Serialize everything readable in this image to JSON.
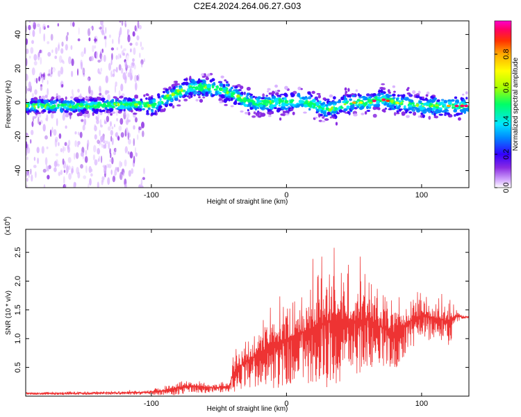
{
  "title": "C2E4.2024.264.06.27.G03",
  "chart_data": [
    {
      "type": "heatmap",
      "xlabel": "Height of straight line (km)",
      "ylabel": "Frequency (Hz)",
      "xlim": [
        -193,
        135
      ],
      "ylim": [
        -50,
        48
      ],
      "xticks": [
        -100,
        0,
        100
      ],
      "xtick_labels": [
        "-100",
        "0",
        "100"
      ],
      "yticks": [
        -40,
        -20,
        0,
        20,
        40
      ],
      "ytick_labels": [
        "-40",
        "-20",
        "0",
        "20",
        "40"
      ],
      "colorbar": {
        "label": "Normalized spectral amplitude",
        "ticks": [
          0.0,
          0.2,
          0.4,
          0.6,
          0.8
        ],
        "tick_labels": [
          "0.0",
          "0.2",
          "0.4",
          "0.6",
          "0.8"
        ],
        "range": [
          0,
          1
        ],
        "colors": [
          "#ffffff",
          "#d9b3ff",
          "#8a2be2",
          "#3300ff",
          "#0088ff",
          "#00e5ff",
          "#00ff66",
          "#aaff00",
          "#ffff00",
          "#ffaa00",
          "#ff3300",
          "#ff0066",
          "#ff00cc"
        ]
      },
      "ridge": {
        "x": [
          -193,
          -150,
          -110,
          -100,
          -90,
          -80,
          -70,
          -60,
          -50,
          -40,
          -30,
          -20,
          -10,
          0,
          10,
          20,
          30,
          40,
          50,
          60,
          70,
          80,
          90,
          100,
          110,
          120,
          135
        ],
        "y": [
          -2,
          -2,
          -1,
          -2,
          2,
          6,
          9,
          9,
          8,
          5,
          1,
          -1,
          0,
          0,
          1,
          -1,
          -4,
          -2,
          0,
          0,
          2,
          0,
          -1,
          -2,
          -2,
          -2,
          -2
        ]
      }
    },
    {
      "type": "line",
      "xlabel": "Height of straight line (km)",
      "ylabel": "SNR (10 * v/v)",
      "y_multiplier_label": "(x10",
      "y_multiplier_exp": "4",
      "y_multiplier_close": ")",
      "xlim": [
        -193,
        135
      ],
      "ylim": [
        0,
        2.9
      ],
      "xticks": [
        -100,
        0,
        100
      ],
      "xtick_labels": [
        "-100",
        "0",
        "100"
      ],
      "yticks": [
        0.5,
        1.0,
        1.5,
        2.0,
        2.5
      ],
      "ytick_labels": [
        "0.5",
        "1.0",
        "1.5",
        "2.0",
        "2.5"
      ],
      "series": [
        {
          "color": "#ee3333",
          "envelope_x": [
            -193,
            -160,
            -120,
            -100,
            -90,
            -80,
            -70,
            -60,
            -50,
            -42,
            -40,
            -35,
            -30,
            -20,
            -10,
            0,
            10,
            20,
            30,
            40,
            50,
            60,
            70,
            80,
            90,
            100,
            110,
            120,
            125,
            130,
            135
          ],
          "envelope_mean": [
            0.05,
            0.05,
            0.06,
            0.07,
            0.1,
            0.15,
            0.18,
            0.15,
            0.15,
            0.18,
            0.35,
            0.5,
            0.6,
            0.75,
            0.9,
            1.0,
            1.1,
            1.2,
            1.3,
            1.35,
            1.3,
            1.35,
            1.2,
            1.1,
            1.3,
            1.4,
            1.35,
            1.3,
            1.4,
            1.38,
            1.38
          ],
          "envelope_max": [
            0.08,
            0.08,
            0.1,
            0.12,
            0.2,
            0.3,
            0.32,
            0.28,
            0.25,
            0.3,
            0.7,
            0.95,
            1.1,
            1.4,
            1.75,
            1.95,
            2.1,
            2.3,
            2.7,
            2.55,
            2.4,
            2.3,
            2.0,
            1.9,
            1.85,
            1.9,
            1.75,
            1.85,
            1.55,
            1.42,
            1.4
          ]
        }
      ]
    }
  ]
}
